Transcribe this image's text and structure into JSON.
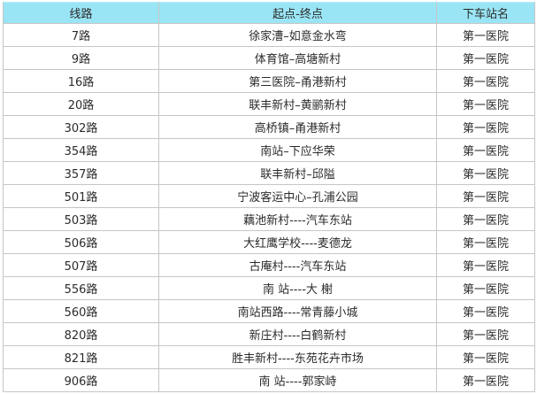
{
  "table": {
    "columns": [
      {
        "key": "route",
        "label": "线路"
      },
      {
        "key": "endpoints",
        "label": "起点-终点"
      },
      {
        "key": "station",
        "label": "下车站名"
      }
    ],
    "rows": [
      {
        "route": "7路",
        "endpoints": "徐家漕–如意金水弯",
        "station": "第一医院"
      },
      {
        "route": "9路",
        "endpoints": "体育馆–高塘新村",
        "station": "第一医院"
      },
      {
        "route": "16路",
        "endpoints": "第三医院–甬港新村",
        "station": "第一医院"
      },
      {
        "route": "20路",
        "endpoints": "联丰新村–黄鹂新村",
        "station": "第一医院"
      },
      {
        "route": "302路",
        "endpoints": "高桥镇–甬港新村",
        "station": "第一医院"
      },
      {
        "route": "354路",
        "endpoints": "南站–下应华荣",
        "station": "第一医院"
      },
      {
        "route": "357路",
        "endpoints": "联丰新村–邱隘",
        "station": "第一医院"
      },
      {
        "route": "501路",
        "endpoints": "宁波客运中心–孔浦公园",
        "station": "第一医院"
      },
      {
        "route": "503路",
        "endpoints": "藕池新村----汽车东站",
        "station": "第一医院"
      },
      {
        "route": "506路",
        "endpoints": "大红鹰学校----麦德龙",
        "station": "第一医院"
      },
      {
        "route": "507路",
        "endpoints": "古庵村----汽车东站",
        "station": "第一医院"
      },
      {
        "route": "556路",
        "endpoints": "南 站----大 榭",
        "station": "第一医院"
      },
      {
        "route": "560路",
        "endpoints": "南站西路----常青藤小城",
        "station": "第一医院"
      },
      {
        "route": "820路",
        "endpoints": "新庄村----白鹤新村",
        "station": "第一医院"
      },
      {
        "route": "821路",
        "endpoints": "胜丰新村----东苑花卉市场",
        "station": "第一医院"
      },
      {
        "route": "906路",
        "endpoints": "南 站----郭家峙",
        "station": "第一医院"
      }
    ],
    "colors": {
      "header_bg": "#9ae5f5",
      "grid_border": "#c6c6c6",
      "text": "#2b2b2b",
      "row_bg": "#ffffff"
    }
  }
}
